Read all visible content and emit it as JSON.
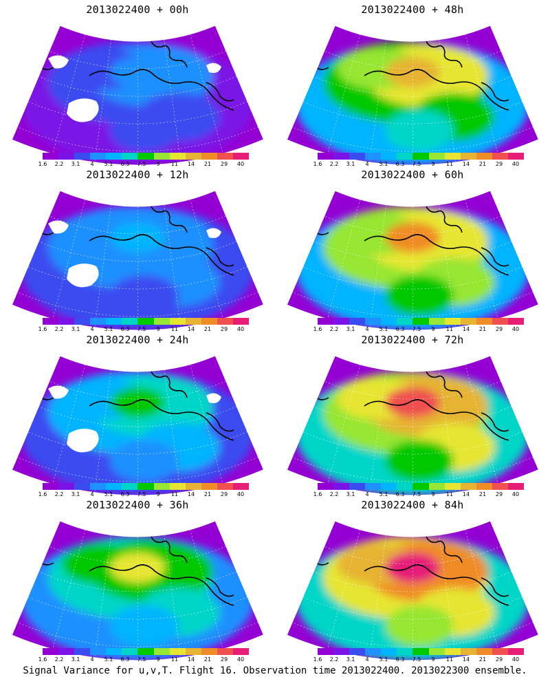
{
  "panels": [
    {
      "title": "2013022400 + 00h",
      "intensity": 0.25,
      "missing": true
    },
    {
      "title": "2013022400 + 48h",
      "intensity": 0.72,
      "missing": false
    },
    {
      "title": "2013022400 + 12h",
      "intensity": 0.32,
      "missing": true
    },
    {
      "title": "2013022400 + 60h",
      "intensity": 0.78,
      "missing": false
    },
    {
      "title": "2013022400 + 24h",
      "intensity": 0.45,
      "missing": true
    },
    {
      "title": "2013022400 + 72h",
      "intensity": 0.85,
      "missing": false
    },
    {
      "title": "2013022400 + 36h",
      "intensity": 0.6,
      "missing": false
    },
    {
      "title": "2013022400 + 84h",
      "intensity": 0.92,
      "missing": false
    }
  ],
  "colorbar": {
    "labels": [
      "1.6",
      "2.2",
      "3.1",
      "4",
      "5.1",
      "6.3",
      "7.5",
      "9",
      "11",
      "14",
      "21",
      "29",
      "40"
    ],
    "colors": [
      "#9400d3",
      "#7a14e6",
      "#3a4cf0",
      "#1e90ff",
      "#00b4ff",
      "#00d6c8",
      "#00c800",
      "#96e632",
      "#e6e632",
      "#e6b432",
      "#f08c28",
      "#f05050",
      "#e61e78"
    ]
  },
  "caption": "Signal Variance for u,v,T. Flight 16. Observation time 2013022400. 2013022300 ensemble."
}
